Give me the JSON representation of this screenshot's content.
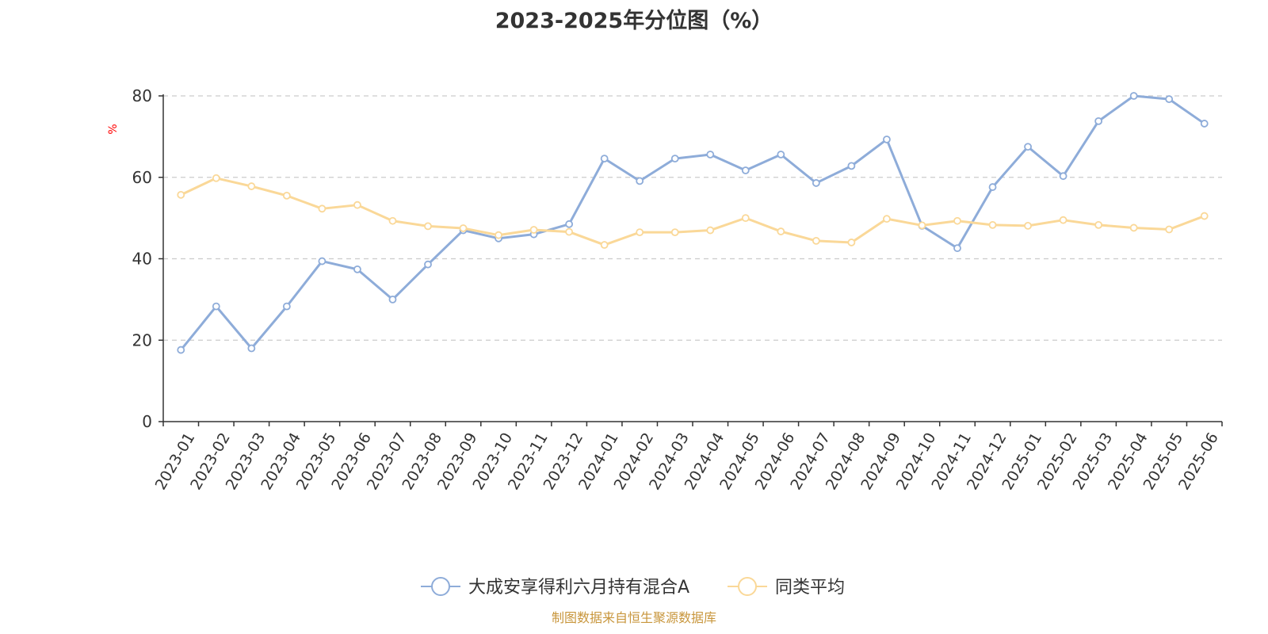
{
  "chart_data": {
    "type": "line",
    "title": "2023-2025年分位图（%）",
    "ylabel": "%",
    "xlabel": "",
    "ylim": [
      0,
      80
    ],
    "yticks": [
      0,
      20,
      40,
      60,
      80
    ],
    "grid": true,
    "legend_position": "bottom-center",
    "categories": [
      "2023-01",
      "2023-02",
      "2023-03",
      "2023-04",
      "2023-05",
      "2023-06",
      "2023-07",
      "2023-08",
      "2023-09",
      "2023-10",
      "2023-11",
      "2023-12",
      "2024-01",
      "2024-02",
      "2024-03",
      "2024-04",
      "2024-05",
      "2024-06",
      "2024-07",
      "2024-08",
      "2024-09",
      "2024-10",
      "2024-11",
      "2024-12",
      "2025-01",
      "2025-02",
      "2025-03",
      "2025-04",
      "2025-05",
      "2025-06"
    ],
    "series": [
      {
        "name": "大成安享得利六月持有混合A",
        "color": "#8eacd9",
        "values": [
          17.6,
          28.3,
          18.0,
          28.3,
          39.4,
          37.4,
          30.0,
          38.6,
          47.0,
          45.0,
          46.0,
          48.5,
          64.6,
          59.1,
          64.6,
          65.6,
          61.7,
          65.6,
          58.6,
          62.8,
          69.3,
          48.1,
          42.6,
          57.6,
          67.5,
          60.3,
          73.8,
          80.0,
          79.2,
          73.2
        ]
      },
      {
        "name": "同类平均",
        "color": "#fad898",
        "values": [
          55.7,
          59.8,
          57.8,
          55.5,
          52.3,
          53.2,
          49.3,
          48.0,
          47.5,
          45.8,
          47.1,
          46.6,
          43.4,
          46.5,
          46.5,
          47.0,
          50.0,
          46.7,
          44.4,
          44.0,
          49.8,
          48.2,
          49.3,
          48.3,
          48.1,
          49.5,
          48.3,
          47.6,
          47.2,
          50.5
        ]
      }
    ]
  },
  "colors": {
    "axis": "#333333",
    "grid": "#cccccc",
    "ylabel": "#ff0000",
    "footer": "#c8963c",
    "title": "#333333"
  },
  "footer_text": "制图数据来自恒生聚源数据库"
}
